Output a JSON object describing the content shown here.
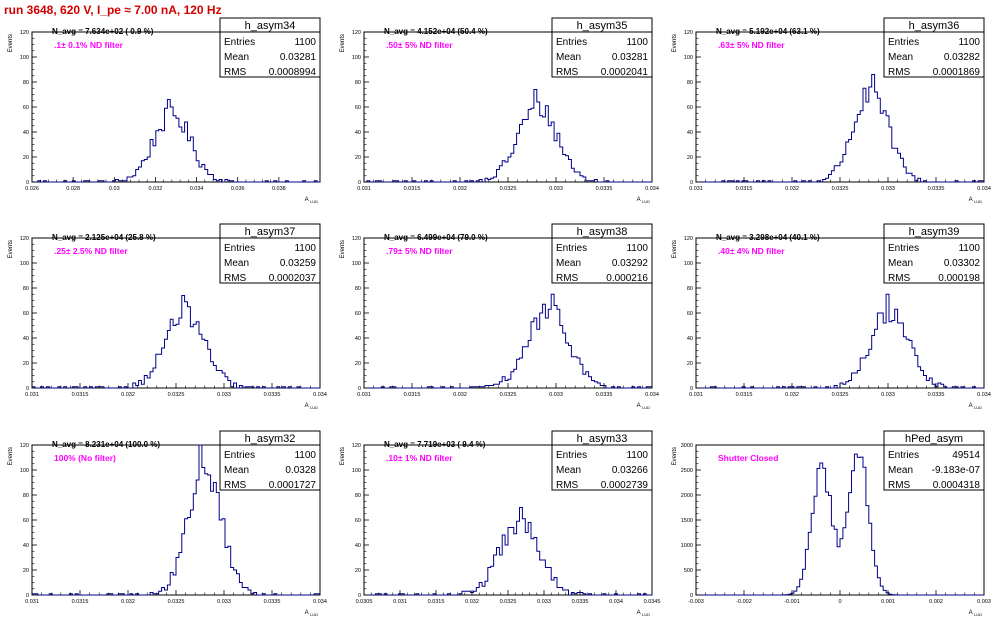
{
  "page": {
    "title": "run 3648,   620 V, I_pe ≈ 7.00 nA, 120 Hz"
  },
  "colors": {
    "histogram": "#00008b",
    "note": "#ff00ff",
    "title": "#d40000",
    "axis": "#000000"
  },
  "common": {
    "xlabel": "A",
    "xlabel_sub": "LUD",
    "ylabel": "Events"
  },
  "chart_data": [
    {
      "type": "histogram",
      "title": "h_asym34",
      "navg": "N_avg = 7.634e+02 ( 0.9 %)",
      "note": ".1± 0.1% ND filter",
      "stats": [
        [
          "Entries",
          "1100"
        ],
        [
          "Mean",
          "0.03281"
        ],
        [
          "RMS",
          "0.0008994"
        ]
      ],
      "xlim": [
        0.026,
        0.04
      ],
      "ylim": [
        0,
        120
      ],
      "xticks": [
        0.026,
        0.028,
        0.03,
        0.032,
        0.034,
        0.036,
        0.038
      ],
      "xticklabels": [
        "0.026",
        "0.028",
        "0.03",
        "0.032",
        "0.034",
        "0.036",
        "0.038"
      ],
      "yticks": [
        0,
        20,
        40,
        60,
        80,
        100,
        120
      ],
      "mean": 0.03281,
      "rms": 0.0008994,
      "peak": 66,
      "nbins": 100
    },
    {
      "type": "histogram",
      "title": "h_asym35",
      "navg": "N_avg = 4.152e+04 (50.4 %)",
      "note": ".50± 5% ND filter",
      "stats": [
        [
          "Entries",
          "1100"
        ],
        [
          "Mean",
          "0.03281"
        ],
        [
          "RMS",
          "0.0002041"
        ]
      ],
      "xlim": [
        0.031,
        0.034
      ],
      "ylim": [
        0,
        120
      ],
      "xticks": [
        0.031,
        0.0315,
        0.032,
        0.0325,
        0.033,
        0.0335,
        0.034
      ],
      "xticklabels": [
        "0.031",
        "0.0315",
        "0.032",
        "0.0325",
        "0.033",
        "0.0335",
        "0.034"
      ],
      "yticks": [
        0,
        20,
        40,
        60,
        80,
        100,
        120
      ],
      "mean": 0.03281,
      "rms": 0.0002041,
      "peak": 74,
      "nbins": 100
    },
    {
      "type": "histogram",
      "title": "h_asym36",
      "navg": "N_avg = 5.192e+04 (63.1 %)",
      "note": ".63± 5% ND filter",
      "stats": [
        [
          "Entries",
          "1100"
        ],
        [
          "Mean",
          "0.03282"
        ],
        [
          "RMS",
          "0.0001869"
        ]
      ],
      "xlim": [
        0.031,
        0.034
      ],
      "ylim": [
        0,
        120
      ],
      "xticks": [
        0.031,
        0.0315,
        0.032,
        0.0325,
        0.033,
        0.0335,
        0.034
      ],
      "xticklabels": [
        "0.031",
        "0.0315",
        "0.032",
        "0.0325",
        "0.033",
        "0.0335",
        "0.034"
      ],
      "yticks": [
        0,
        20,
        40,
        60,
        80,
        100,
        120
      ],
      "mean": 0.03282,
      "rms": 0.0001869,
      "peak": 86,
      "nbins": 100
    },
    {
      "type": "histogram",
      "title": "h_asym37",
      "navg": "N_avg = 2.125e+04 (25.8 %)",
      "note": ".25± 2.5% ND filter",
      "stats": [
        [
          "Entries",
          "1100"
        ],
        [
          "Mean",
          "0.03259"
        ],
        [
          "RMS",
          "0.0002037"
        ]
      ],
      "xlim": [
        0.031,
        0.034
      ],
      "ylim": [
        0,
        120
      ],
      "xticks": [
        0.031,
        0.0315,
        0.032,
        0.0325,
        0.033,
        0.0335,
        0.034
      ],
      "xticklabels": [
        "0.031",
        "0.0315",
        "0.032",
        "0.0325",
        "0.033",
        "0.0335",
        "0.034"
      ],
      "yticks": [
        0,
        20,
        40,
        60,
        80,
        100,
        120
      ],
      "mean": 0.03259,
      "rms": 0.0002037,
      "peak": 74,
      "nbins": 100
    },
    {
      "type": "histogram",
      "title": "h_asym38",
      "navg": "N_avg = 6.499e+04 (79.0 %)",
      "note": ".79± 5% ND filter",
      "stats": [
        [
          "Entries",
          "1100"
        ],
        [
          "Mean",
          "0.03292"
        ],
        [
          "RMS",
          "0.000216"
        ]
      ],
      "xlim": [
        0.031,
        0.034
      ],
      "ylim": [
        0,
        120
      ],
      "xticks": [
        0.031,
        0.0315,
        0.032,
        0.0325,
        0.033,
        0.0335,
        0.034
      ],
      "xticklabels": [
        "0.031",
        "0.0315",
        "0.032",
        "0.0325",
        "0.033",
        "0.0335",
        "0.034"
      ],
      "yticks": [
        0,
        20,
        40,
        60,
        80,
        100,
        120
      ],
      "mean": 0.03292,
      "rms": 0.000216,
      "peak": 75,
      "nbins": 100
    },
    {
      "type": "histogram",
      "title": "h_asym39",
      "navg": "N_avg = 3.298e+04 (40.1 %)",
      "note": ".40± 4% ND filter",
      "stats": [
        [
          "Entries",
          "1100"
        ],
        [
          "Mean",
          "0.03302"
        ],
        [
          "RMS",
          "0.000198"
        ]
      ],
      "xlim": [
        0.031,
        0.034
      ],
      "ylim": [
        0,
        120
      ],
      "xticks": [
        0.031,
        0.0315,
        0.032,
        0.0325,
        0.033,
        0.0335,
        0.034
      ],
      "xticklabels": [
        "0.031",
        "0.0315",
        "0.032",
        "0.0325",
        "0.033",
        "0.0335",
        "0.034"
      ],
      "yticks": [
        0,
        20,
        40,
        60,
        80,
        100,
        120
      ],
      "mean": 0.03302,
      "rms": 0.000198,
      "peak": 75,
      "nbins": 100
    },
    {
      "type": "histogram",
      "title": "h_asym32",
      "navg": "N_avg = 8.231e+04 (100.0 %)",
      "note": "100% (No filter)",
      "stats": [
        [
          "Entries",
          "1100"
        ],
        [
          "Mean",
          "0.0328"
        ],
        [
          "RMS",
          "0.0001727"
        ]
      ],
      "xlim": [
        0.031,
        0.034
      ],
      "ylim": [
        0,
        120
      ],
      "xticks": [
        0.031,
        0.0315,
        0.032,
        0.0325,
        0.033,
        0.0335,
        0.034
      ],
      "xticklabels": [
        "0.031",
        "0.0315",
        "0.032",
        "0.0325",
        "0.033",
        "0.0335",
        "0.034"
      ],
      "yticks": [
        0,
        20,
        40,
        60,
        80,
        100,
        120
      ],
      "mean": 0.0328,
      "rms": 0.0001727,
      "peak": 125,
      "nbins": 100
    },
    {
      "type": "histogram",
      "title": "h_asym33",
      "navg": "N_avg = 7.719e+03 ( 9.4 %)",
      "note": ".10± 1% ND filter",
      "stats": [
        [
          "Entries",
          "1100"
        ],
        [
          "Mean",
          "0.03266"
        ],
        [
          "RMS",
          "0.0002739"
        ]
      ],
      "xlim": [
        0.0305,
        0.0345
      ],
      "ylim": [
        0,
        120
      ],
      "xticks": [
        0.0305,
        0.031,
        0.0315,
        0.032,
        0.0325,
        0.033,
        0.0335,
        0.034,
        0.0345
      ],
      "xticklabels": [
        "0.0305",
        "0.031",
        "0.0315",
        "0.032",
        "0.0325",
        "0.033",
        "0.0335",
        "0.034",
        "0.0345"
      ],
      "yticks": [
        0,
        20,
        40,
        60,
        80,
        100,
        120
      ],
      "mean": 0.03266,
      "rms": 0.0002739,
      "peak": 70,
      "nbins": 100
    },
    {
      "type": "histogram",
      "title": "hPed_asym",
      "navg": "",
      "note": "Shutter Closed",
      "stats": [
        [
          "Entries",
          "49514"
        ],
        [
          "Mean",
          "-9.183e-07"
        ],
        [
          "RMS",
          "0.0004318"
        ]
      ],
      "xlim": [
        -0.003,
        0.003
      ],
      "ylim": [
        0,
        3000
      ],
      "xticks": [
        -0.003,
        -0.002,
        -0.001,
        0,
        0.001,
        0.002,
        0.003
      ],
      "xticklabels": [
        "-0.003",
        "-0.002",
        "-0.001",
        "0",
        "0.001",
        "0.002",
        "0.003"
      ],
      "yticks": [
        0,
        500,
        1000,
        1500,
        2000,
        2500,
        3000
      ],
      "bimodal": [
        {
          "mean": -0.00038,
          "sigma": 0.00021,
          "peak": 2520
        },
        {
          "mean": 0.00038,
          "sigma": 0.00021,
          "peak": 2900
        }
      ],
      "nbins": 100
    }
  ]
}
